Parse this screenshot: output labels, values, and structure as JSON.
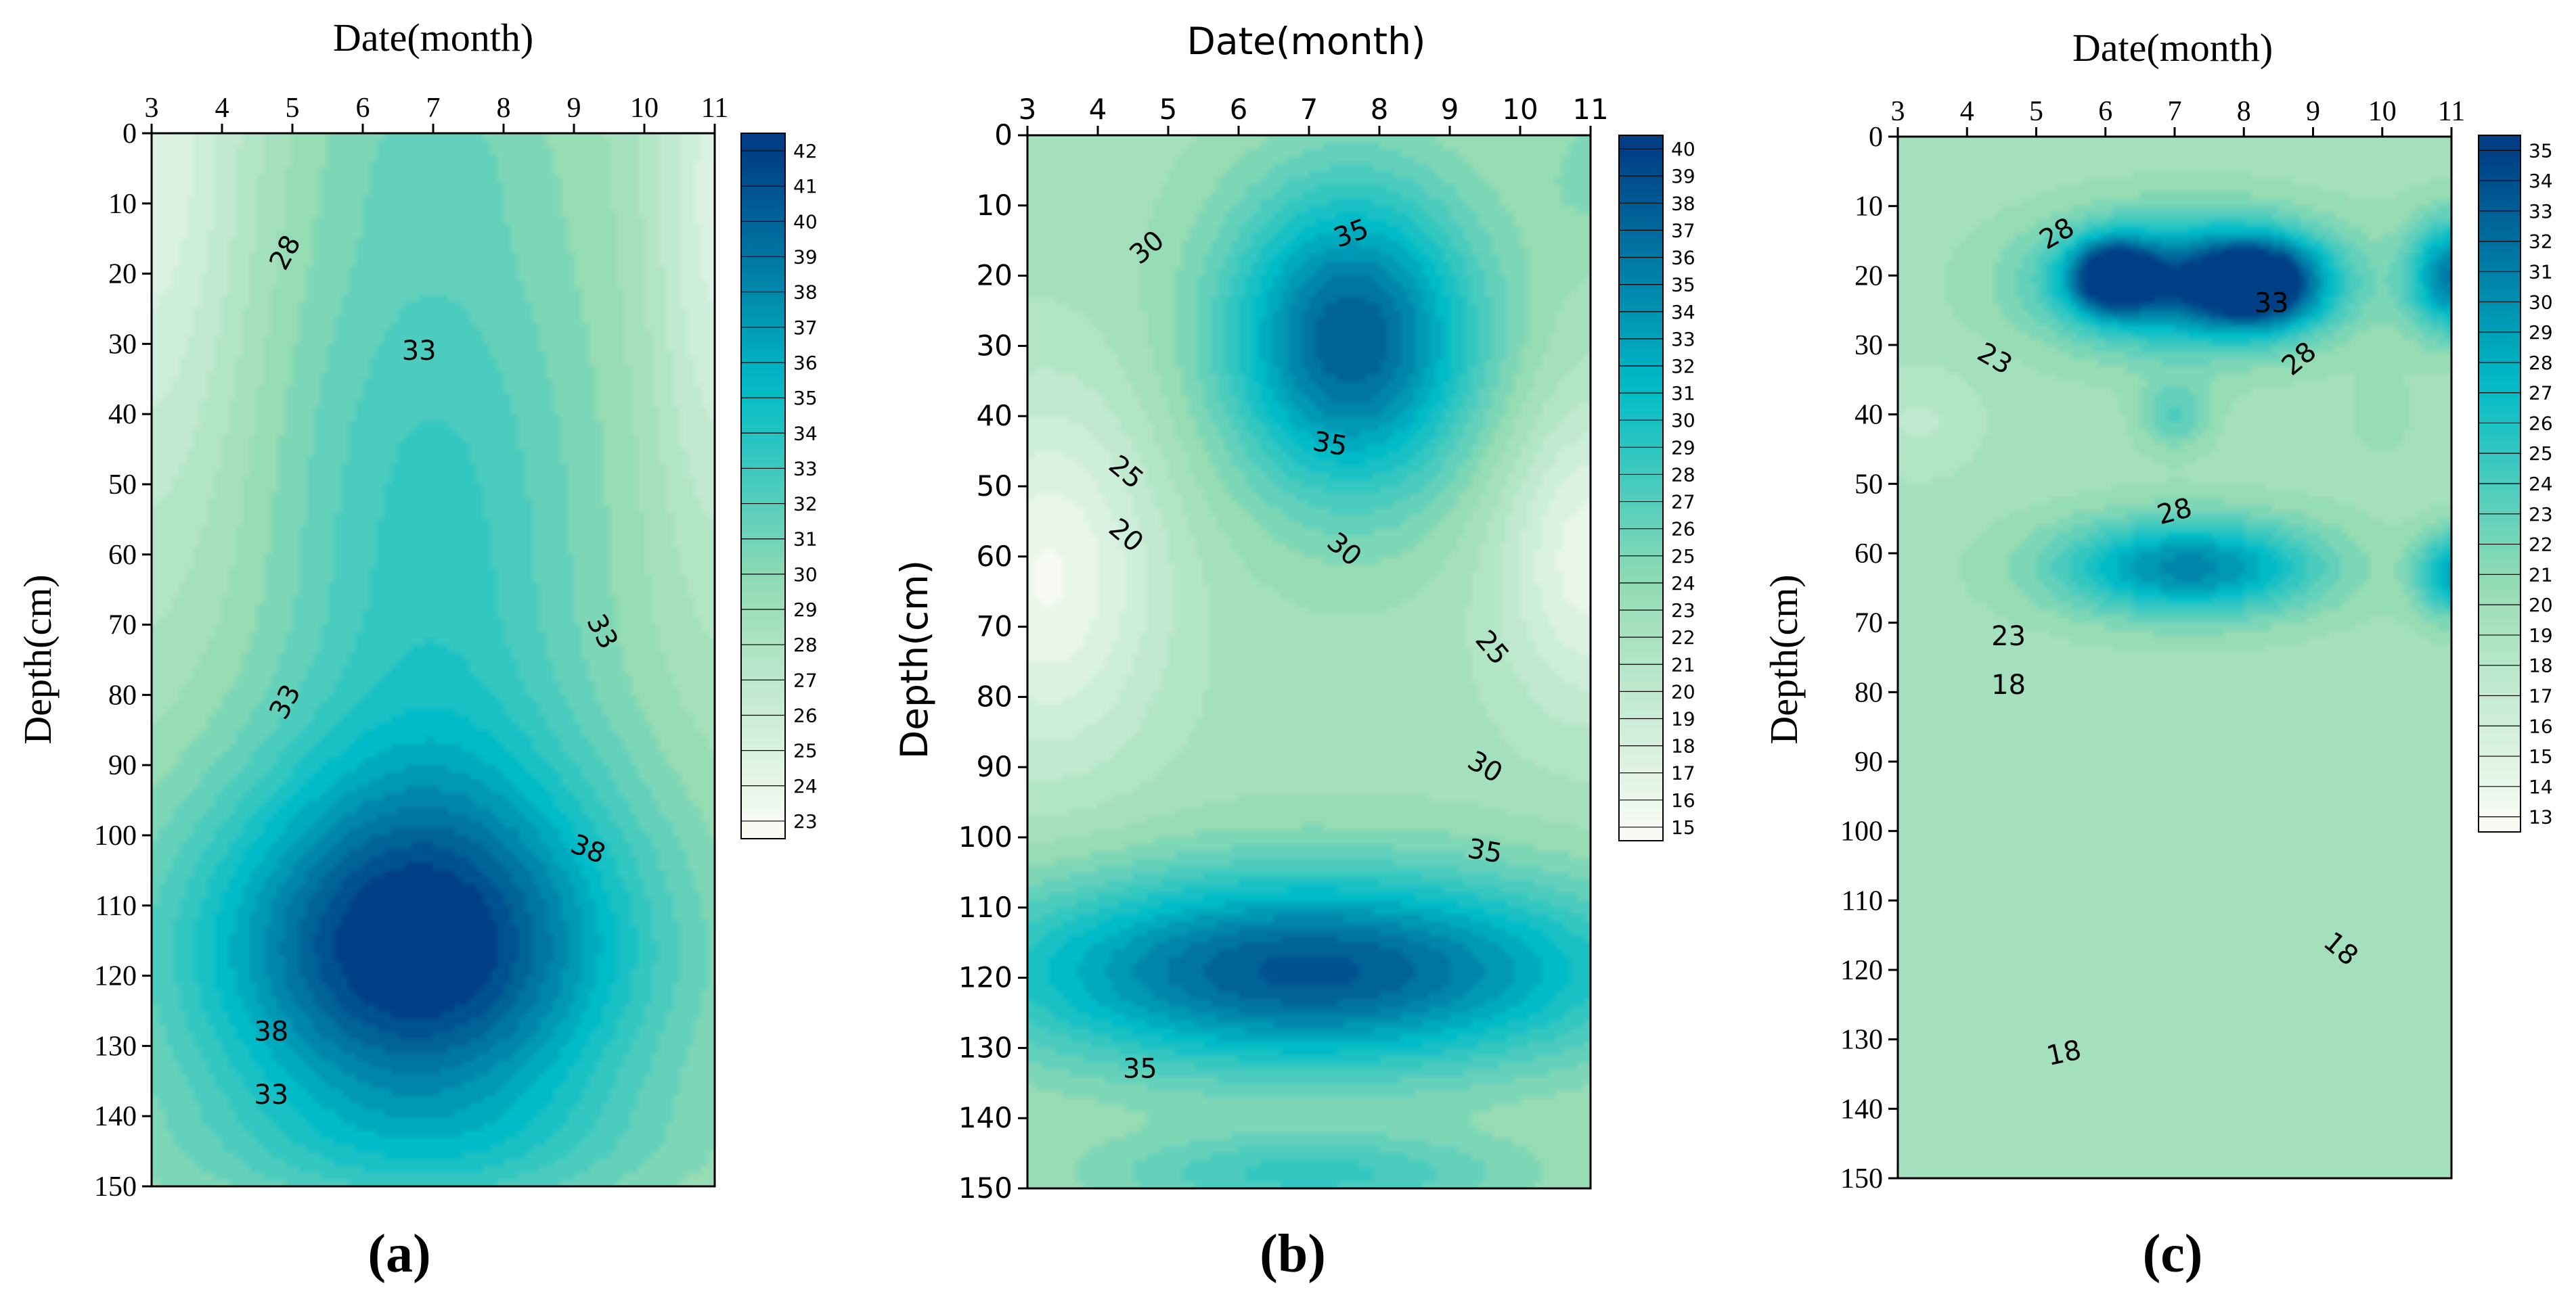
{
  "chart_data": [
    {
      "type": "heatmap",
      "panel_label": "(a)",
      "title": "Date(month)",
      "xlabel": "Date(month)",
      "ylabel": "Depth(cm)",
      "xlim": [
        3,
        11
      ],
      "ylim": [
        0,
        150
      ],
      "x_ticks": [
        "3",
        "4",
        "5",
        "6",
        "7",
        "8",
        "9",
        "10",
        "11"
      ],
      "y_ticks": [
        "0",
        "10",
        "20",
        "30",
        "40",
        "50",
        "60",
        "70",
        "80",
        "90",
        "100",
        "110",
        "120",
        "130",
        "140",
        "150"
      ],
      "colorbar": {
        "min": 23,
        "max": 43,
        "ticks": [
          "42",
          "41",
          "40",
          "39",
          "38",
          "37",
          "36",
          "35",
          "34",
          "33",
          "32",
          "31",
          "30",
          "29",
          "28",
          "27",
          "26",
          "25",
          "24",
          "23"
        ]
      },
      "contour_labels": [
        {
          "text": "28",
          "month": 4.9,
          "depth": 17,
          "rotate": -62
        },
        {
          "text": "33",
          "month": 6.8,
          "depth": 31,
          "rotate": 0
        },
        {
          "text": "33",
          "month": 9.4,
          "depth": 71,
          "rotate": 62
        },
        {
          "text": "33",
          "month": 4.9,
          "depth": 81,
          "rotate": -62
        },
        {
          "text": "38",
          "month": 9.2,
          "depth": 102,
          "rotate": 22
        },
        {
          "text": "38",
          "month": 4.7,
          "depth": 128,
          "rotate": 0
        },
        {
          "text": "33",
          "month": 4.7,
          "depth": 137,
          "rotate": 0
        }
      ],
      "field": [
        {
          "month": 3,
          "depth": 0,
          "value": 24.5,
          "sx": 1.4,
          "sd": 55,
          "amp": -1
        },
        {
          "month": 7,
          "depth": 0,
          "value": 30,
          "sx": 1.6,
          "sd": 15,
          "amp": 1
        },
        {
          "month": 7,
          "depth": 60,
          "value": 34,
          "sx": 2.3,
          "sd": 60,
          "amp": 1
        },
        {
          "month": 6.7,
          "depth": 117,
          "value": 42.5,
          "sx": 3.2,
          "sd": 26,
          "amp": 1
        },
        {
          "month": 7,
          "depth": 145,
          "value": 31,
          "sx": 4,
          "sd": 10,
          "amp": 1
        },
        {
          "month": 11,
          "depth": 10,
          "value": 25,
          "sx": 0.9,
          "sd": 50,
          "amp": -1
        }
      ]
    },
    {
      "type": "heatmap",
      "panel_label": "(b)",
      "title": "Date(month)",
      "xlabel": "Date(month)",
      "ylabel": "Depth(cm)",
      "xlim": [
        3,
        11
      ],
      "ylim": [
        0,
        150
      ],
      "x_ticks": [
        "3",
        "4",
        "5",
        "6",
        "7",
        "8",
        "9",
        "10",
        "11"
      ],
      "y_ticks": [
        "0",
        "10",
        "20",
        "30",
        "40",
        "50",
        "60",
        "70",
        "80",
        "90",
        "100",
        "110",
        "120",
        "130",
        "140",
        "150"
      ],
      "colorbar": {
        "min": 15,
        "max": 41,
        "ticks": [
          "40",
          "39",
          "38",
          "37",
          "36",
          "35",
          "34",
          "33",
          "32",
          "31",
          "30",
          "29",
          "28",
          "27",
          "26",
          "25",
          "24",
          "23",
          "22",
          "21",
          "20",
          "19",
          "18",
          "17",
          "16",
          "15"
        ]
      },
      "contour_labels": [
        {
          "text": "30",
          "month": 4.7,
          "depth": 16,
          "rotate": -40
        },
        {
          "text": "35",
          "month": 7.6,
          "depth": 14,
          "rotate": -20
        },
        {
          "text": "35",
          "month": 7.3,
          "depth": 44,
          "rotate": 10
        },
        {
          "text": "25",
          "month": 4.4,
          "depth": 48,
          "rotate": 40
        },
        {
          "text": "20",
          "month": 4.4,
          "depth": 57,
          "rotate": 40
        },
        {
          "text": "30",
          "month": 7.5,
          "depth": 59,
          "rotate": 40
        },
        {
          "text": "25",
          "month": 9.6,
          "depth": 73,
          "rotate": 50
        },
        {
          "text": "30",
          "month": 9.5,
          "depth": 90,
          "rotate": 30
        },
        {
          "text": "35",
          "month": 9.5,
          "depth": 102,
          "rotate": 10
        },
        {
          "text": "35",
          "month": 4.6,
          "depth": 133,
          "rotate": 0
        }
      ],
      "field": [
        {
          "month": 7.6,
          "depth": 29,
          "value": 39,
          "sx": 1.8,
          "sd": 22,
          "amp": 1
        },
        {
          "month": 7,
          "depth": 119,
          "value": 39.5,
          "sx": 4.5,
          "sd": 14,
          "amp": 1
        },
        {
          "month": 3.3,
          "depth": 63,
          "value": 15.5,
          "sx": 1.6,
          "sd": 26,
          "amp": -1
        },
        {
          "month": 11,
          "depth": 60,
          "value": 16,
          "sx": 1.3,
          "sd": 22,
          "amp": -1
        },
        {
          "month": 3.2,
          "depth": 3,
          "value": 23,
          "sx": 1,
          "sd": 10,
          "amp": -1
        },
        {
          "month": 11,
          "depth": 5,
          "value": 25,
          "sx": 0.8,
          "sd": 12,
          "amp": -1
        },
        {
          "month": 7,
          "depth": 148,
          "value": 29,
          "sx": 3,
          "sd": 6,
          "amp": 1
        }
      ]
    },
    {
      "type": "heatmap",
      "panel_label": "(c)",
      "title": "Date(month)",
      "xlabel": "Date(month)",
      "ylabel": "Depth(cm)",
      "xlim": [
        3,
        11
      ],
      "ylim": [
        0,
        150
      ],
      "x_ticks": [
        "3",
        "4",
        "5",
        "6",
        "7",
        "8",
        "9",
        "10",
        "11"
      ],
      "y_ticks": [
        "0",
        "10",
        "20",
        "30",
        "40",
        "50",
        "60",
        "70",
        "80",
        "90",
        "100",
        "110",
        "120",
        "130",
        "140",
        "150"
      ],
      "colorbar": {
        "min": 13,
        "max": 36,
        "ticks": [
          "35",
          "34",
          "33",
          "32",
          "31",
          "30",
          "29",
          "28",
          "27",
          "26",
          "25",
          "24",
          "23",
          "22",
          "21",
          "20",
          "19",
          "18",
          "17",
          "16",
          "15",
          "14",
          "13"
        ]
      },
      "contour_labels": [
        {
          "text": "28",
          "month": 5.3,
          "depth": 14,
          "rotate": -30
        },
        {
          "text": "33",
          "month": 8.4,
          "depth": 24,
          "rotate": 0
        },
        {
          "text": "23",
          "month": 4.4,
          "depth": 32,
          "rotate": 30
        },
        {
          "text": "28",
          "month": 8.8,
          "depth": 32,
          "rotate": -40
        },
        {
          "text": "28",
          "month": 7.0,
          "depth": 54,
          "rotate": -15
        },
        {
          "text": "23",
          "month": 4.6,
          "depth": 72,
          "rotate": 0
        },
        {
          "text": "18",
          "month": 4.6,
          "depth": 79,
          "rotate": 0
        },
        {
          "text": "18",
          "month": 9.4,
          "depth": 117,
          "rotate": 40
        },
        {
          "text": "18",
          "month": 5.4,
          "depth": 132,
          "rotate": -12
        }
      ],
      "field": [
        {
          "month": 7.2,
          "depth": 21,
          "value": 33,
          "sx": 2.0,
          "sd": 9,
          "amp": 1
        },
        {
          "month": 6.1,
          "depth": 20,
          "value": 34.5,
          "sx": 0.6,
          "sd": 5,
          "amp": 1
        },
        {
          "month": 8.2,
          "depth": 21,
          "value": 34,
          "sx": 0.9,
          "sd": 6,
          "amp": 1
        },
        {
          "month": 11,
          "depth": 20,
          "value": 32,
          "sx": 0.6,
          "sd": 8,
          "amp": 1
        },
        {
          "month": 7.2,
          "depth": 62,
          "value": 31.5,
          "sx": 1.9,
          "sd": 7,
          "amp": 1
        },
        {
          "month": 11,
          "depth": 63,
          "value": 29,
          "sx": 0.5,
          "sd": 6,
          "amp": 1
        },
        {
          "month": 3.3,
          "depth": 41,
          "value": 18,
          "sx": 0.9,
          "sd": 8,
          "amp": -1
        },
        {
          "month": 10,
          "depth": 40,
          "value": 21,
          "sx": 0.5,
          "sd": 6,
          "amp": -1
        },
        {
          "month": 7.0,
          "depth": 40,
          "value": 24,
          "sx": 0.5,
          "sd": 5,
          "amp": -1
        },
        {
          "month": 10,
          "depth": 9,
          "value": 20,
          "sx": 0.4,
          "sd": 6,
          "amp": -1
        }
      ]
    }
  ],
  "colors": {
    "low": "#f7fbf4",
    "mid": "#00bcc8",
    "high": "#003f85",
    "axis": "#000000"
  }
}
